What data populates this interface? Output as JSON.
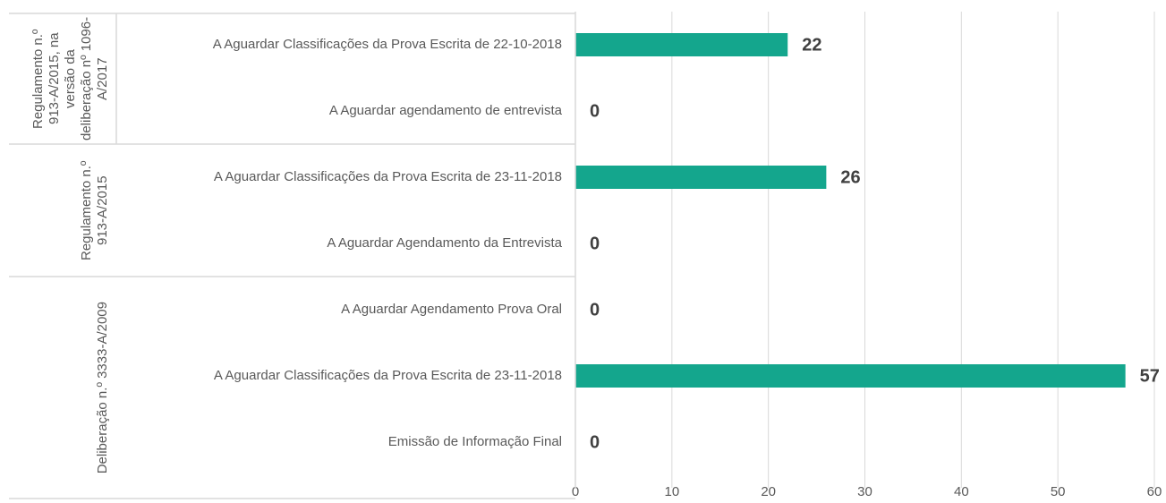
{
  "chart_data": {
    "type": "bar",
    "orientation": "horizontal",
    "color": "#14a68d",
    "grid": true,
    "groups": [
      {
        "name": "Regulamento n.º 913-A/2015, na versão da deliberação nº 1096-A/2017",
        "categories": [
          "A Aguardar Classificações da Prova Escrita de 22-10-2018",
          "A Aguardar agendamento de entrevista"
        ],
        "values": [
          22,
          0
        ]
      },
      {
        "name": "Regulamento n.º 913-A/2015",
        "categories": [
          "A Aguardar Classificações da Prova Escrita de 23-11-2018",
          "A Aguardar Agendamento da Entrevista"
        ],
        "values": [
          26,
          0
        ]
      },
      {
        "name": "Deliberação n.º 3333-A/2009",
        "categories": [
          "A Aguardar Agendamento Prova Oral",
          "A Aguardar Classificações da Prova Escrita de 23-11-2018",
          "Emissão de Informação Final"
        ],
        "values": [
          0,
          57,
          0
        ]
      }
    ],
    "xlim": [
      0,
      60
    ],
    "xticks": [
      0,
      10,
      20,
      30,
      40,
      50,
      60
    ]
  }
}
